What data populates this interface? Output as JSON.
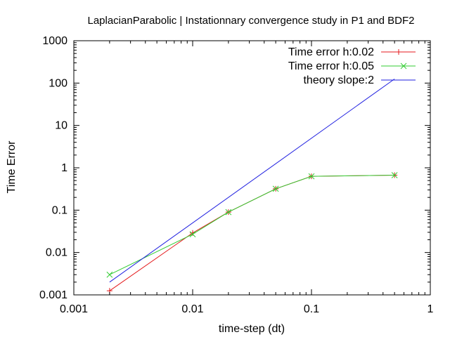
{
  "chart_data": {
    "type": "line",
    "title": "LaplacianParabolic | Instationnary convergence study in P1 and BDF2",
    "xlabel": "time-step (dt)",
    "ylabel": "Time Error",
    "xscale": "log",
    "yscale": "log",
    "xlim": [
      0.001,
      1
    ],
    "ylim": [
      0.001,
      1000
    ],
    "xticks": [
      {
        "value": 0.001,
        "label": "0.001"
      },
      {
        "value": 0.01,
        "label": "0.01"
      },
      {
        "value": 0.1,
        "label": "0.1"
      },
      {
        "value": 1,
        "label": "1"
      }
    ],
    "yticks": [
      {
        "value": 0.001,
        "label": "0.001"
      },
      {
        "value": 0.01,
        "label": "0.01"
      },
      {
        "value": 0.1,
        "label": "0.1"
      },
      {
        "value": 1,
        "label": "1"
      },
      {
        "value": 10,
        "label": "10"
      },
      {
        "value": 100,
        "label": "100"
      },
      {
        "value": 1000,
        "label": "1000"
      }
    ],
    "grid": false,
    "legend_position": "top-right",
    "series": [
      {
        "name": "Time error h:0.02",
        "color": "#e41a1c",
        "marker": "plus",
        "x": [
          0.002,
          0.01,
          0.02,
          0.05,
          0.1,
          0.5
        ],
        "y": [
          0.00125,
          0.029,
          0.09,
          0.32,
          0.63,
          0.67
        ]
      },
      {
        "name": "Time error h:0.05",
        "color": "#33cc33",
        "marker": "cross",
        "x": [
          0.002,
          0.01,
          0.02,
          0.05,
          0.1,
          0.5
        ],
        "y": [
          0.003,
          0.027,
          0.09,
          0.32,
          0.63,
          0.67
        ]
      },
      {
        "name": "theory slope:2",
        "color": "#1f1fe0",
        "marker": "none",
        "x": [
          0.002,
          0.5
        ],
        "y": [
          0.002,
          125
        ]
      }
    ]
  }
}
